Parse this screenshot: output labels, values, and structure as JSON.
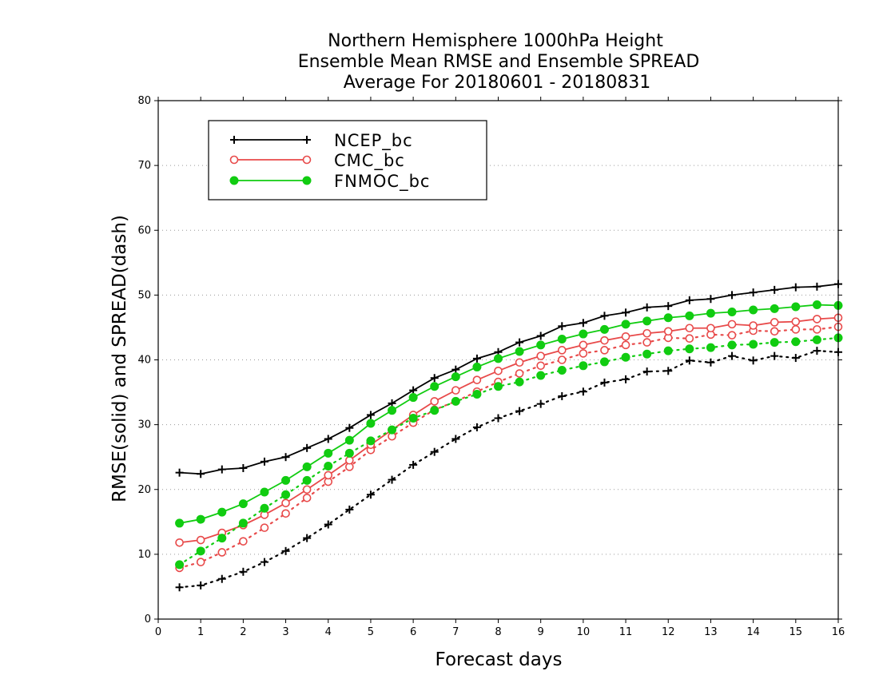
{
  "chart_data": {
    "type": "line",
    "title": [
      "Northern Hemisphere 1000hPa Height",
      "Ensemble Mean RMSE and Ensemble SPREAD",
      "Average For 20180601 - 20180831"
    ],
    "xlabel": "Forecast days",
    "ylabel": "RMSE(solid) and SPREAD(dash)",
    "xlim": [
      0,
      16
    ],
    "ylim": [
      0,
      80
    ],
    "xticks": [
      "0",
      "1",
      "2",
      "3",
      "4",
      "5",
      "6",
      "7",
      "8",
      "9",
      "10",
      "11",
      "12",
      "13",
      "14",
      "15",
      "16"
    ],
    "yticks": [
      "0",
      "10",
      "20",
      "30",
      "40",
      "50",
      "60",
      "70",
      "80"
    ],
    "grid": "horizontal dotted",
    "legend_position": "top-left",
    "x": [
      0.5,
      1,
      1.5,
      2,
      2.5,
      3,
      3.5,
      4,
      4.5,
      5,
      5.5,
      6,
      6.5,
      7,
      7.5,
      8,
      8.5,
      9,
      9.5,
      10,
      10.5,
      11,
      11.5,
      12,
      12.5,
      13,
      13.5,
      14,
      14.5,
      15,
      15.5,
      16
    ],
    "series": [
      {
        "name": "NCEP_bc",
        "color": "#000000",
        "marker": "plus",
        "rmse": [
          22.6,
          22.4,
          23.1,
          23.3,
          24.3,
          25.0,
          26.4,
          27.8,
          29.5,
          31.5,
          33.3,
          35.3,
          37.2,
          38.5,
          40.2,
          41.2,
          42.7,
          43.7,
          45.2,
          45.7,
          46.8,
          47.3,
          48.1,
          48.3,
          49.2,
          49.4,
          50.0,
          50.4,
          50.8,
          51.2,
          51.3,
          51.7
        ],
        "spread": [
          4.9,
          5.2,
          6.2,
          7.3,
          8.8,
          10.5,
          12.5,
          14.6,
          16.9,
          19.2,
          21.5,
          23.8,
          25.8,
          27.8,
          29.6,
          31.0,
          32.1,
          33.2,
          34.4,
          35.1,
          36.5,
          37.0,
          38.2,
          38.3,
          39.9,
          39.6,
          40.6,
          39.9,
          40.6,
          40.3,
          41.4,
          41.2
        ]
      },
      {
        "name": "CMC_bc",
        "color": "#e84a4a",
        "marker": "open-circle",
        "rmse": [
          11.8,
          12.2,
          13.3,
          14.5,
          16.1,
          17.9,
          20.0,
          22.2,
          24.5,
          26.9,
          29.2,
          31.5,
          33.6,
          35.3,
          36.9,
          38.3,
          39.6,
          40.6,
          41.5,
          42.3,
          43.0,
          43.6,
          44.1,
          44.4,
          44.9,
          44.9,
          45.5,
          45.3,
          45.8,
          45.9,
          46.3,
          46.5
        ],
        "spread": [
          7.9,
          8.8,
          10.3,
          12.0,
          14.1,
          16.3,
          18.7,
          21.2,
          23.5,
          26.1,
          28.2,
          30.3,
          32.3,
          33.6,
          35.1,
          36.6,
          37.9,
          39.1,
          40.0,
          41.0,
          41.5,
          42.3,
          42.7,
          43.4,
          43.3,
          43.9,
          43.8,
          44.5,
          44.4,
          44.7,
          44.7,
          45.1
        ]
      },
      {
        "name": "FNMOC_bc",
        "color": "#11cc11",
        "marker": "filled-circle",
        "rmse": [
          14.8,
          15.4,
          16.5,
          17.8,
          19.6,
          21.4,
          23.5,
          25.6,
          27.6,
          30.2,
          32.2,
          34.2,
          35.9,
          37.4,
          38.9,
          40.2,
          41.3,
          42.3,
          43.2,
          44.0,
          44.7,
          45.5,
          46.0,
          46.5,
          46.8,
          47.2,
          47.4,
          47.7,
          47.9,
          48.2,
          48.5,
          48.4
        ],
        "spread": [
          8.4,
          10.5,
          12.5,
          14.8,
          17.1,
          19.2,
          21.4,
          23.6,
          25.6,
          27.5,
          29.2,
          31.0,
          32.2,
          33.6,
          34.7,
          35.9,
          36.6,
          37.6,
          38.4,
          39.1,
          39.7,
          40.4,
          40.9,
          41.4,
          41.7,
          41.9,
          42.3,
          42.4,
          42.7,
          42.8,
          43.1,
          43.4
        ]
      }
    ]
  }
}
